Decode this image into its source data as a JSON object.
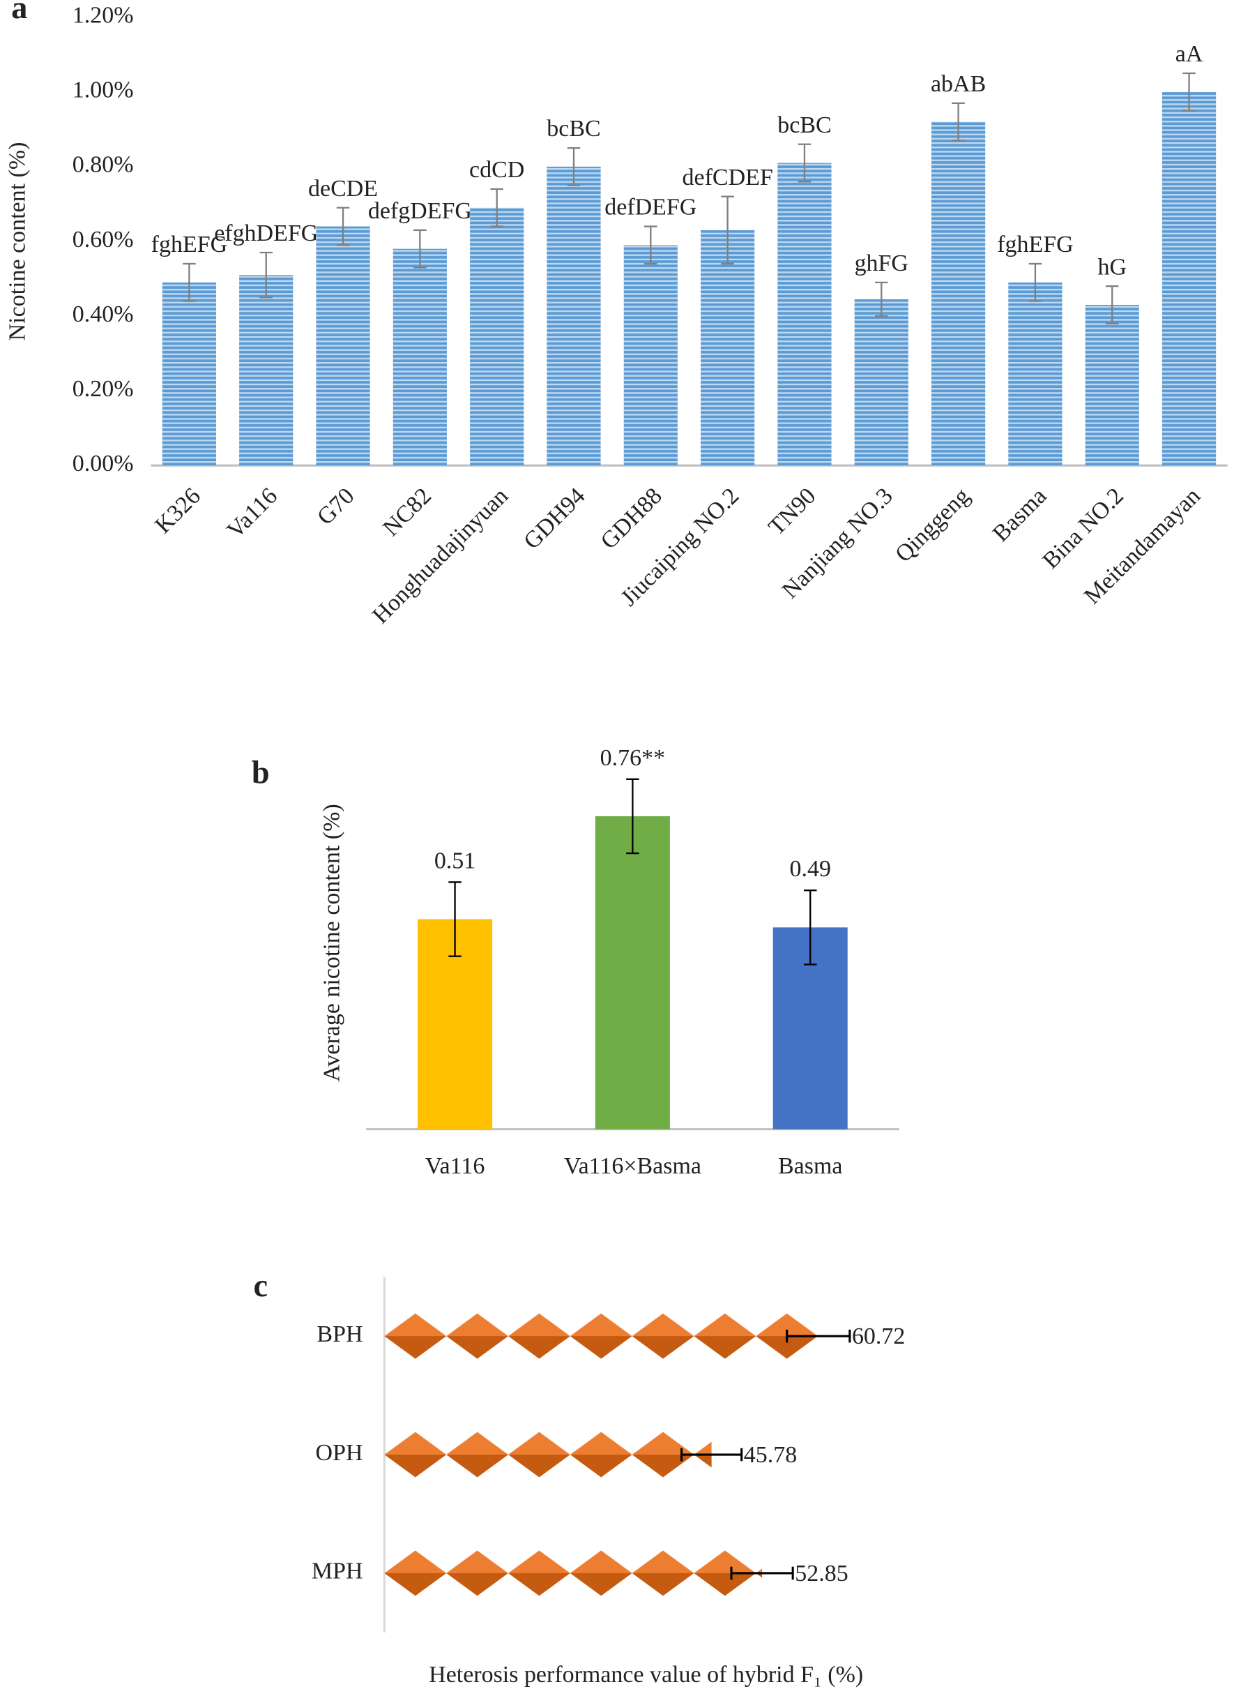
{
  "chart_data": [
    {
      "type": "bar",
      "panel": "a",
      "y_label": "Nicotine content (%)",
      "categories": [
        "K326",
        "Va116",
        "G70",
        "NC82",
        "Honghuadajinyuan",
        "GDH94",
        "GDH88",
        "Jiucaiping NO.2",
        "TN90",
        "Nanjiang NO.3",
        "Qinggeng",
        "Basma",
        "Bina NO.2",
        "Meitandamayan"
      ],
      "values": [
        0.49,
        0.51,
        0.64,
        0.58,
        0.69,
        0.8,
        0.59,
        0.63,
        0.81,
        0.445,
        0.92,
        0.49,
        0.43,
        1.0
      ],
      "errors": [
        0.05,
        0.06,
        0.05,
        0.05,
        0.05,
        0.05,
        0.05,
        0.09,
        0.05,
        0.045,
        0.05,
        0.05,
        0.05,
        0.05
      ],
      "letters": [
        "fghEFG",
        "efghDEFG",
        "deCDE",
        "defgDEFG",
        "cdCD",
        "bcBC",
        "defDEFG",
        "defCDEF",
        "bcBC",
        "ghFG",
        "abAB",
        "fghEFG",
        "hG",
        "aA"
      ],
      "color": "#5b9bd5",
      "ylim": [
        0,
        1.2
      ],
      "yticks": [
        {
          "value": 0,
          "label": "0.00%"
        },
        {
          "value": 0.2,
          "label": "0.20%"
        },
        {
          "value": 0.4,
          "label": "0.40%"
        },
        {
          "value": 0.6,
          "label": "0.60%"
        },
        {
          "value": 0.8,
          "label": "0.80%"
        },
        {
          "value": 1.0,
          "label": "1.00%"
        },
        {
          "value": 1.2,
          "label": "1.20%"
        }
      ]
    },
    {
      "type": "bar",
      "panel": "b",
      "y_label": "Average nicotine content  (%)",
      "categories": [
        "Va116",
        "Va116×Basma",
        "Basma"
      ],
      "values": [
        0.51,
        0.76,
        0.49
      ],
      "value_labels": [
        "0.51",
        "0.76**",
        "0.49"
      ],
      "errors": [
        0.09,
        0.09,
        0.09
      ],
      "colors": [
        "#ffc000",
        "#70ad47",
        "#4472c4"
      ],
      "ylim": [
        0,
        0.9
      ]
    },
    {
      "type": "bar",
      "orientation": "horizontal",
      "panel": "c",
      "x_label": "Heterosis performance value of hybrid F₁ (%)",
      "categories": [
        "BPH",
        "OPH",
        "MPH"
      ],
      "values": [
        60.72,
        45.78,
        52.85
      ],
      "errors": [
        4.4,
        4.2,
        4.3
      ],
      "color": "#ed7d31",
      "xlim": [
        0,
        110
      ]
    }
  ]
}
